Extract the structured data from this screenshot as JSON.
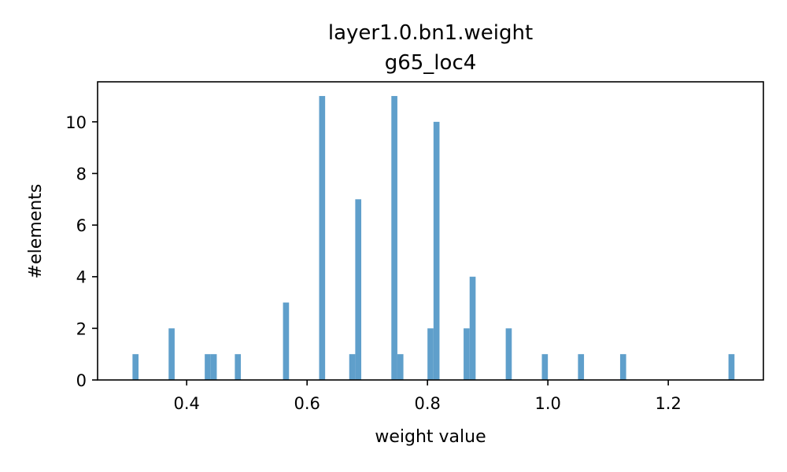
{
  "chart_data": {
    "type": "bar",
    "title_lines": [
      "layer1.0.bn1.weight",
      "g65_loc4"
    ],
    "xlabel": "weight value",
    "ylabel": "#elements",
    "xlim": [
      0.252,
      1.358
    ],
    "ylim": [
      0,
      11.55
    ],
    "bin_width": 0.01,
    "xticks": [
      0.4,
      0.6,
      0.8,
      1.0,
      1.2
    ],
    "xtick_labels": [
      "0.4",
      "0.6",
      "0.8",
      "1.0",
      "1.2"
    ],
    "yticks": [
      0,
      2,
      4,
      6,
      8,
      10
    ],
    "ytick_labels": [
      "0",
      "2",
      "4",
      "6",
      "8",
      "10"
    ],
    "grid": false,
    "bar_color": "#5f9fcb",
    "bins": [
      {
        "x": 0.315,
        "count": 1
      },
      {
        "x": 0.375,
        "count": 2
      },
      {
        "x": 0.435,
        "count": 1
      },
      {
        "x": 0.445,
        "count": 1
      },
      {
        "x": 0.485,
        "count": 1
      },
      {
        "x": 0.565,
        "count": 3
      },
      {
        "x": 0.625,
        "count": 11
      },
      {
        "x": 0.675,
        "count": 1
      },
      {
        "x": 0.685,
        "count": 7
      },
      {
        "x": 0.745,
        "count": 11
      },
      {
        "x": 0.755,
        "count": 1
      },
      {
        "x": 0.805,
        "count": 2
      },
      {
        "x": 0.815,
        "count": 10
      },
      {
        "x": 0.865,
        "count": 2
      },
      {
        "x": 0.875,
        "count": 4
      },
      {
        "x": 0.935,
        "count": 2
      },
      {
        "x": 0.995,
        "count": 1
      },
      {
        "x": 1.055,
        "count": 1
      },
      {
        "x": 1.125,
        "count": 1
      },
      {
        "x": 1.305,
        "count": 1
      }
    ]
  }
}
